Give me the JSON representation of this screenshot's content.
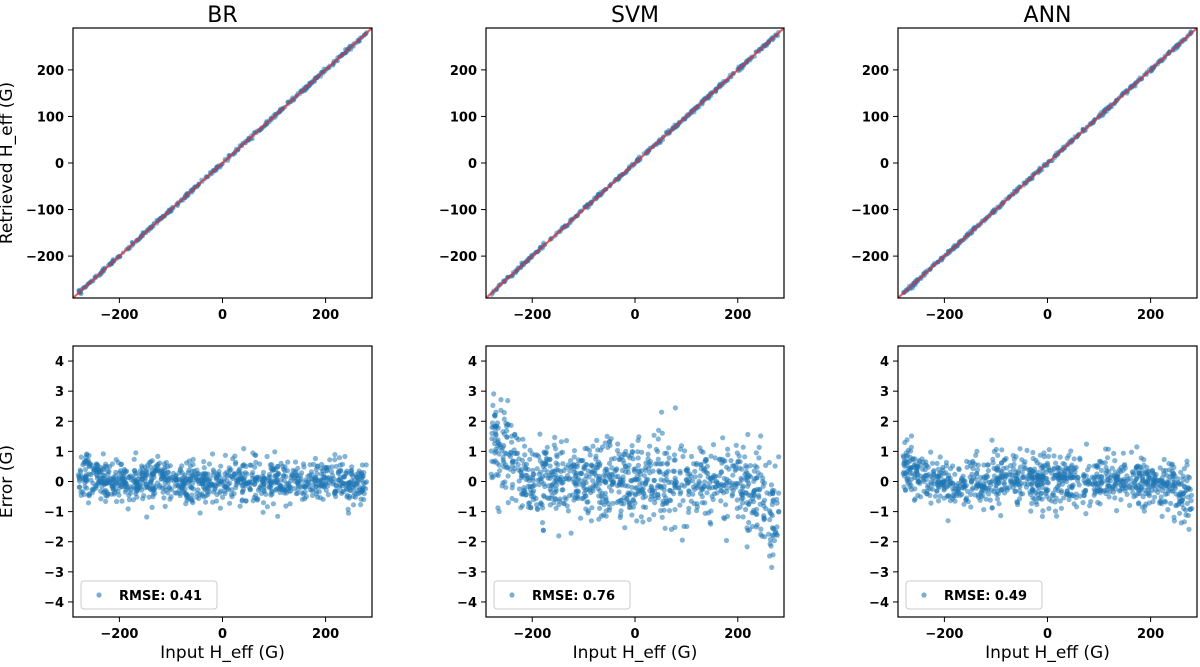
{
  "colors": {
    "points": "#1f77b4",
    "identity_line": "#e0303a",
    "frame": "#000000"
  },
  "shared": {
    "x_label": "Input  H_eff (G)",
    "top_y_label": "Retrieved H_eff (G)",
    "bottom_y_label": "Error (G)",
    "top_ticks": [
      "-200",
      "0",
      "200"
    ],
    "top_y_ticks": [
      "200",
      "100",
      "0",
      "-100",
      "-200"
    ],
    "bottom_x_ticks": [
      "-200",
      "0",
      "200"
    ],
    "bottom_y_ticks": [
      "4",
      "3",
      "2",
      "1",
      "0",
      "-1",
      "-2",
      "-3",
      "-4"
    ]
  },
  "chart_data": [
    {
      "type": "scatter",
      "panel": "top",
      "title": "BR",
      "xlabel": "",
      "ylabel": "Retrieved H_eff (G)",
      "xlim": [
        -290,
        290
      ],
      "ylim": [
        -290,
        290
      ],
      "xticks": [
        -200,
        0,
        200
      ],
      "yticks": [
        -200,
        -100,
        0,
        100,
        200
      ],
      "series": [
        {
          "name": "retrieved",
          "x_range": [
            -280,
            280
          ],
          "relation": "y = x + error",
          "n_points": 1000
        },
        {
          "name": "identity",
          "line": [
            [
              -290,
              -290
            ],
            [
              290,
              290
            ]
          ]
        }
      ]
    },
    {
      "type": "scatter",
      "panel": "top",
      "title": "SVM",
      "xlabel": "",
      "ylabel": "",
      "xlim": [
        -290,
        290
      ],
      "ylim": [
        -290,
        290
      ],
      "xticks": [
        -200,
        0,
        200
      ],
      "yticks": [
        -200,
        -100,
        0,
        100,
        200
      ],
      "series": [
        {
          "name": "retrieved",
          "x_range": [
            -280,
            280
          ],
          "relation": "y = x + error",
          "n_points": 1000
        },
        {
          "name": "identity",
          "line": [
            [
              -290,
              -290
            ],
            [
              290,
              290
            ]
          ]
        }
      ]
    },
    {
      "type": "scatter",
      "panel": "top",
      "title": "ANN",
      "xlabel": "",
      "ylabel": "",
      "xlim": [
        -290,
        290
      ],
      "ylim": [
        -290,
        290
      ],
      "xticks": [
        -200,
        0,
        200
      ],
      "yticks": [
        -200,
        -100,
        0,
        100,
        200
      ],
      "series": [
        {
          "name": "retrieved",
          "x_range": [
            -280,
            280
          ],
          "relation": "y = x + error",
          "n_points": 1000
        },
        {
          "name": "identity",
          "line": [
            [
              -290,
              -290
            ],
            [
              290,
              290
            ]
          ]
        }
      ]
    },
    {
      "type": "scatter",
      "panel": "bottom",
      "title": "",
      "xlabel": "Input  H_eff (G)",
      "ylabel": "Error (G)",
      "xlim": [
        -290,
        290
      ],
      "ylim": [
        -4.5,
        4.5
      ],
      "xticks": [
        -200,
        0,
        200
      ],
      "yticks": [
        -4,
        -3,
        -2,
        -1,
        0,
        1,
        2,
        3,
        4
      ],
      "legend": {
        "label": "RMSE: 0.41",
        "position": "lower-left"
      },
      "series": [
        {
          "name": "error",
          "x_range": [
            -280,
            280
          ],
          "n_points": 1000,
          "rmse": 0.41,
          "edge_bias": [
            0.3,
            -0.2
          ]
        }
      ]
    },
    {
      "type": "scatter",
      "panel": "bottom",
      "title": "",
      "xlabel": "Input  H_eff (G)",
      "ylabel": "",
      "xlim": [
        -290,
        290
      ],
      "ylim": [
        -4.5,
        4.5
      ],
      "xticks": [
        -200,
        0,
        200
      ],
      "yticks": [
        -4,
        -3,
        -2,
        -1,
        0,
        1,
        2,
        3,
        4
      ],
      "legend": {
        "label": "RMSE: 0.76",
        "position": "lower-left"
      },
      "series": [
        {
          "name": "error",
          "x_range": [
            -280,
            280
          ],
          "n_points": 1000,
          "rmse": 0.76,
          "edge_bias": [
            1.5,
            -1.2
          ]
        }
      ]
    },
    {
      "type": "scatter",
      "panel": "bottom",
      "title": "",
      "xlabel": "Input  H_eff (G)",
      "ylabel": "",
      "xlim": [
        -290,
        290
      ],
      "ylim": [
        -4.5,
        4.5
      ],
      "xticks": [
        -200,
        0,
        200
      ],
      "yticks": [
        -4,
        -3,
        -2,
        -1,
        0,
        1,
        2,
        3,
        4
      ],
      "legend": {
        "label": "RMSE: 0.49",
        "position": "lower-left"
      },
      "series": [
        {
          "name": "error",
          "x_range": [
            -280,
            280
          ],
          "n_points": 1000,
          "rmse": 0.49,
          "edge_bias": [
            0.5,
            -0.5
          ]
        }
      ]
    }
  ]
}
